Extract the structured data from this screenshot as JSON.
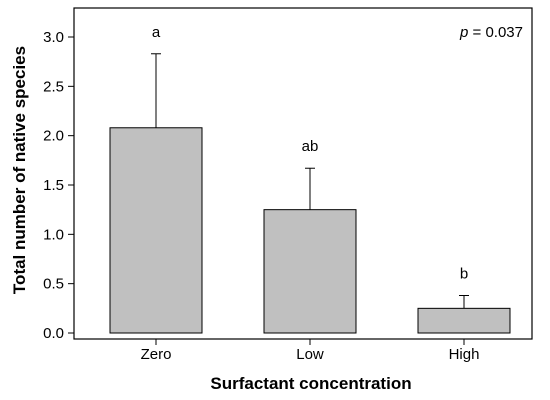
{
  "chart_data": {
    "type": "bar",
    "xlabel": "Surfactant concentration",
    "ylabel": "Total number of native species",
    "categories": [
      "Zero",
      "Low",
      "High"
    ],
    "values": [
      2.08,
      1.25,
      0.25
    ],
    "error_upper": [
      2.83,
      1.67,
      0.38
    ],
    "significance_letters": [
      "a",
      "ab",
      "b"
    ],
    "ylim": [
      0,
      3.2
    ],
    "yticks": [
      0.0,
      0.5,
      1.0,
      1.5,
      2.0,
      2.5,
      3.0
    ],
    "ytick_labels": [
      "0.0",
      "0.5",
      "1.0",
      "1.5",
      "2.0",
      "2.5",
      "3.0"
    ],
    "p_label": "p",
    "p_value_text": " = 0.037",
    "bar_color": "#c0c0c0",
    "grid": false,
    "legend": "none"
  }
}
